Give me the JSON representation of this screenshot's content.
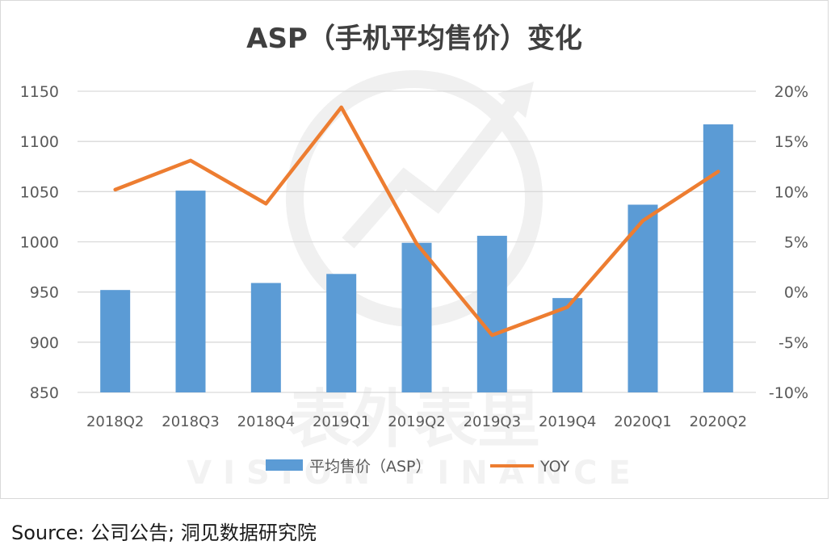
{
  "chart_data": {
    "type": "bar",
    "title": "ASP（手机平均售价）变化",
    "categories": [
      "2018Q2",
      "2018Q3",
      "2018Q4",
      "2019Q1",
      "2019Q2",
      "2019Q3",
      "2019Q4",
      "2020Q1",
      "2020Q2"
    ],
    "series": [
      {
        "name": "平均售价（ASP）",
        "type": "bar",
        "axis": "left",
        "color": "#5b9bd5",
        "values": [
          952,
          1051,
          959,
          968,
          999,
          1006,
          944,
          1037,
          1117
        ]
      },
      {
        "name": "YOY",
        "type": "line",
        "axis": "right",
        "color": "#ed7d31",
        "values": [
          10.2,
          13.1,
          8.8,
          18.4,
          4.8,
          -4.3,
          -1.5,
          7.1,
          12.0
        ]
      }
    ],
    "y_left": {
      "ylim": [
        850,
        1150
      ],
      "ticks": [
        "1150",
        "1100",
        "1050",
        "1000",
        "950",
        "900",
        "850"
      ]
    },
    "y_right": {
      "ylim": [
        -10,
        20
      ],
      "unit": "%",
      "ticks": [
        "20%",
        "15%",
        "10%",
        "5%",
        "0%",
        "-5%",
        "-10%"
      ]
    },
    "grid": true,
    "legend_position": "bottom"
  },
  "watermark": {
    "chinese": "表外表里",
    "english": "VISION FINANCE"
  },
  "source": "Source: 公司公告; 洞见数据研究院"
}
